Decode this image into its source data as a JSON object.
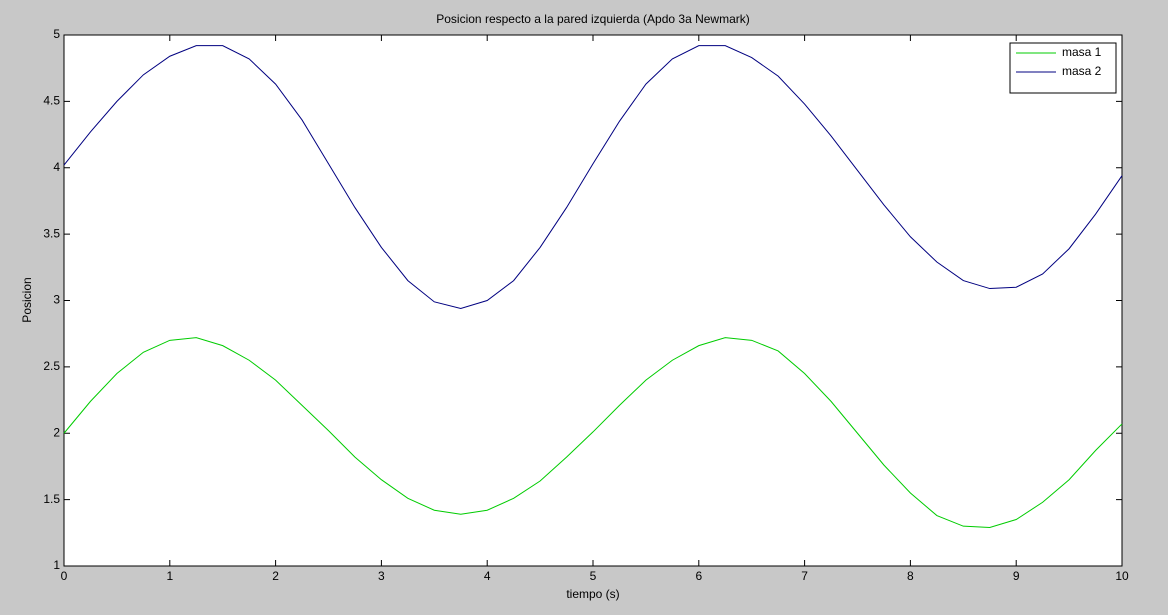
{
  "chart_data": {
    "type": "line",
    "title": "Posicion respecto a la pared izquierda (Apdo 3a Newmark)",
    "x_label": "tiempo (s)",
    "y_label": "Posicion",
    "x": [
      0,
      0.25,
      0.5,
      0.75,
      1,
      1.25,
      1.5,
      1.75,
      2,
      2.25,
      2.5,
      2.75,
      3,
      3.25,
      3.5,
      3.75,
      4,
      4.25,
      4.5,
      4.75,
      5,
      5.25,
      5.5,
      5.75,
      6,
      6.25,
      6.5,
      6.75,
      7,
      7.25,
      7.5,
      7.75,
      8,
      8.25,
      8.5,
      8.75,
      9,
      9.25,
      9.5,
      9.75,
      10
    ],
    "series": [
      {
        "name": "masa 1",
        "color": "#00cc00",
        "values": [
          2.0,
          2.24,
          2.45,
          2.61,
          2.7,
          2.72,
          2.66,
          2.55,
          2.4,
          2.21,
          2.02,
          1.82,
          1.65,
          1.51,
          1.42,
          1.39,
          1.42,
          1.51,
          1.64,
          1.82,
          2.01,
          2.21,
          2.4,
          2.55,
          2.66,
          2.72,
          2.7,
          2.62,
          2.45,
          2.24,
          2.0,
          1.76,
          1.55,
          1.38,
          1.3,
          1.29,
          1.35,
          1.48,
          1.65,
          1.87,
          2.07
        ]
      },
      {
        "name": "masa 2",
        "color": "#000080",
        "values": [
          4.02,
          4.27,
          4.5,
          4.7,
          4.84,
          4.92,
          4.92,
          4.82,
          4.63,
          4.36,
          4.03,
          3.7,
          3.4,
          3.15,
          2.99,
          2.94,
          3.0,
          3.15,
          3.4,
          3.7,
          4.03,
          4.35,
          4.63,
          4.82,
          4.92,
          4.92,
          4.83,
          4.69,
          4.48,
          4.24,
          3.98,
          3.72,
          3.48,
          3.29,
          3.15,
          3.09,
          3.1,
          3.2,
          3.39,
          3.65,
          3.94
        ]
      }
    ],
    "xlim": [
      0,
      10
    ],
    "ylim": [
      1,
      5
    ],
    "xticks": [
      0,
      1,
      2,
      3,
      4,
      5,
      6,
      7,
      8,
      9,
      10
    ],
    "yticks": [
      1,
      1.5,
      2,
      2.5,
      3,
      3.5,
      4,
      4.5,
      5
    ],
    "grid": false,
    "legend": "upper right"
  }
}
